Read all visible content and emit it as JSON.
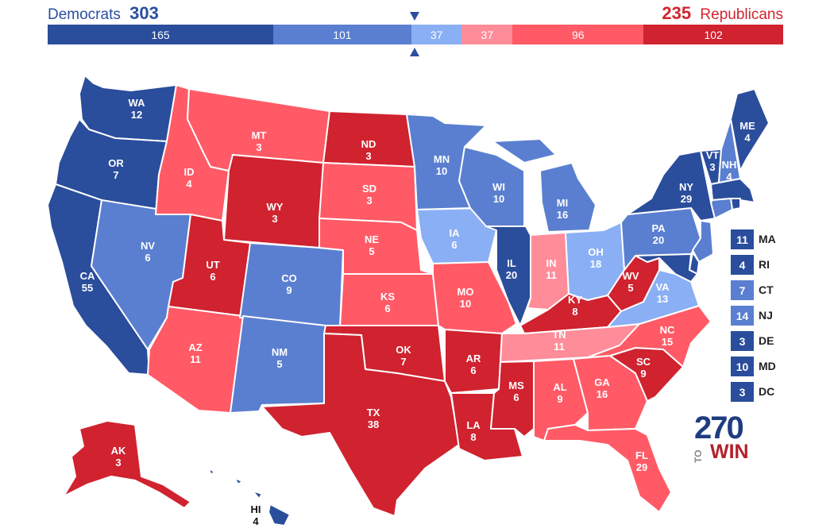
{
  "header": {
    "dem_label": "Democrats",
    "dem_total": "303",
    "rep_total": "235",
    "rep_label": "Republicans"
  },
  "colors": {
    "safe_dem": "#2a4d9c",
    "likely_dem": "#5a7fd0",
    "lean_dem": "#8aaff5",
    "lean_rep": "#ff8c99",
    "likely_rep": "#ff5a66",
    "safe_rep": "#d0222f"
  },
  "bar": [
    {
      "value": "165",
      "rating": "safe_dem",
      "width": 165
    },
    {
      "value": "101",
      "rating": "likely_dem",
      "width": 101
    },
    {
      "value": "37",
      "rating": "lean_dem",
      "width": 37
    },
    {
      "value": "37",
      "rating": "lean_rep",
      "width": 37
    },
    {
      "value": "96",
      "rating": "likely_rep",
      "width": 96
    },
    {
      "value": "102",
      "rating": "safe_rep",
      "width": 102
    }
  ],
  "states": [
    {
      "abbr": "WA",
      "ev": "12",
      "rating": "safe_dem"
    },
    {
      "abbr": "OR",
      "ev": "7",
      "rating": "safe_dem"
    },
    {
      "abbr": "CA",
      "ev": "55",
      "rating": "safe_dem"
    },
    {
      "abbr": "NV",
      "ev": "6",
      "rating": "likely_dem"
    },
    {
      "abbr": "ID",
      "ev": "4",
      "rating": "likely_rep"
    },
    {
      "abbr": "MT",
      "ev": "3",
      "rating": "likely_rep"
    },
    {
      "abbr": "WY",
      "ev": "3",
      "rating": "safe_rep"
    },
    {
      "abbr": "UT",
      "ev": "6",
      "rating": "safe_rep"
    },
    {
      "abbr": "AZ",
      "ev": "11",
      "rating": "likely_rep"
    },
    {
      "abbr": "CO",
      "ev": "9",
      "rating": "likely_dem"
    },
    {
      "abbr": "NM",
      "ev": "5",
      "rating": "likely_dem"
    },
    {
      "abbr": "ND",
      "ev": "3",
      "rating": "safe_rep"
    },
    {
      "abbr": "SD",
      "ev": "3",
      "rating": "likely_rep"
    },
    {
      "abbr": "NE",
      "ev": "5",
      "rating": "likely_rep"
    },
    {
      "abbr": "KS",
      "ev": "6",
      "rating": "likely_rep"
    },
    {
      "abbr": "OK",
      "ev": "7",
      "rating": "safe_rep"
    },
    {
      "abbr": "TX",
      "ev": "38",
      "rating": "safe_rep"
    },
    {
      "abbr": "MN",
      "ev": "10",
      "rating": "likely_dem"
    },
    {
      "abbr": "IA",
      "ev": "6",
      "rating": "lean_dem"
    },
    {
      "abbr": "MO",
      "ev": "10",
      "rating": "likely_rep"
    },
    {
      "abbr": "AR",
      "ev": "6",
      "rating": "safe_rep"
    },
    {
      "abbr": "LA",
      "ev": "8",
      "rating": "safe_rep"
    },
    {
      "abbr": "WI",
      "ev": "10",
      "rating": "likely_dem"
    },
    {
      "abbr": "IL",
      "ev": "20",
      "rating": "safe_dem"
    },
    {
      "abbr": "MI",
      "ev": "16",
      "rating": "likely_dem"
    },
    {
      "abbr": "IN",
      "ev": "11",
      "rating": "lean_rep"
    },
    {
      "abbr": "OH",
      "ev": "18",
      "rating": "lean_dem"
    },
    {
      "abbr": "KY",
      "ev": "8",
      "rating": "safe_rep"
    },
    {
      "abbr": "TN",
      "ev": "11",
      "rating": "lean_rep"
    },
    {
      "abbr": "MS",
      "ev": "6",
      "rating": "safe_rep"
    },
    {
      "abbr": "AL",
      "ev": "9",
      "rating": "likely_rep"
    },
    {
      "abbr": "GA",
      "ev": "16",
      "rating": "likely_rep"
    },
    {
      "abbr": "FL",
      "ev": "29",
      "rating": "likely_rep"
    },
    {
      "abbr": "SC",
      "ev": "9",
      "rating": "safe_rep"
    },
    {
      "abbr": "NC",
      "ev": "15",
      "rating": "likely_rep"
    },
    {
      "abbr": "VA",
      "ev": "13",
      "rating": "lean_dem"
    },
    {
      "abbr": "WV",
      "ev": "5",
      "rating": "safe_rep"
    },
    {
      "abbr": "PA",
      "ev": "20",
      "rating": "likely_dem"
    },
    {
      "abbr": "NY",
      "ev": "29",
      "rating": "safe_dem"
    },
    {
      "abbr": "VT",
      "ev": "3",
      "rating": "safe_dem"
    },
    {
      "abbr": "NH",
      "ev": "4",
      "rating": "likely_dem"
    },
    {
      "abbr": "ME",
      "ev": "4",
      "rating": "safe_dem"
    },
    {
      "abbr": "AK",
      "ev": "3",
      "rating": "safe_rep"
    },
    {
      "abbr": "HI",
      "ev": "4",
      "rating": "safe_dem"
    }
  ],
  "small_states": [
    {
      "abbr": "MA",
      "ev": "11",
      "rating": "safe_dem"
    },
    {
      "abbr": "RI",
      "ev": "4",
      "rating": "safe_dem"
    },
    {
      "abbr": "CT",
      "ev": "7",
      "rating": "likely_dem"
    },
    {
      "abbr": "NJ",
      "ev": "14",
      "rating": "likely_dem"
    },
    {
      "abbr": "DE",
      "ev": "3",
      "rating": "safe_dem"
    },
    {
      "abbr": "MD",
      "ev": "10",
      "rating": "safe_dem"
    },
    {
      "abbr": "DC",
      "ev": "3",
      "rating": "safe_dem"
    }
  ],
  "logo": {
    "number": "270",
    "to": "TO",
    "win": "WIN"
  }
}
